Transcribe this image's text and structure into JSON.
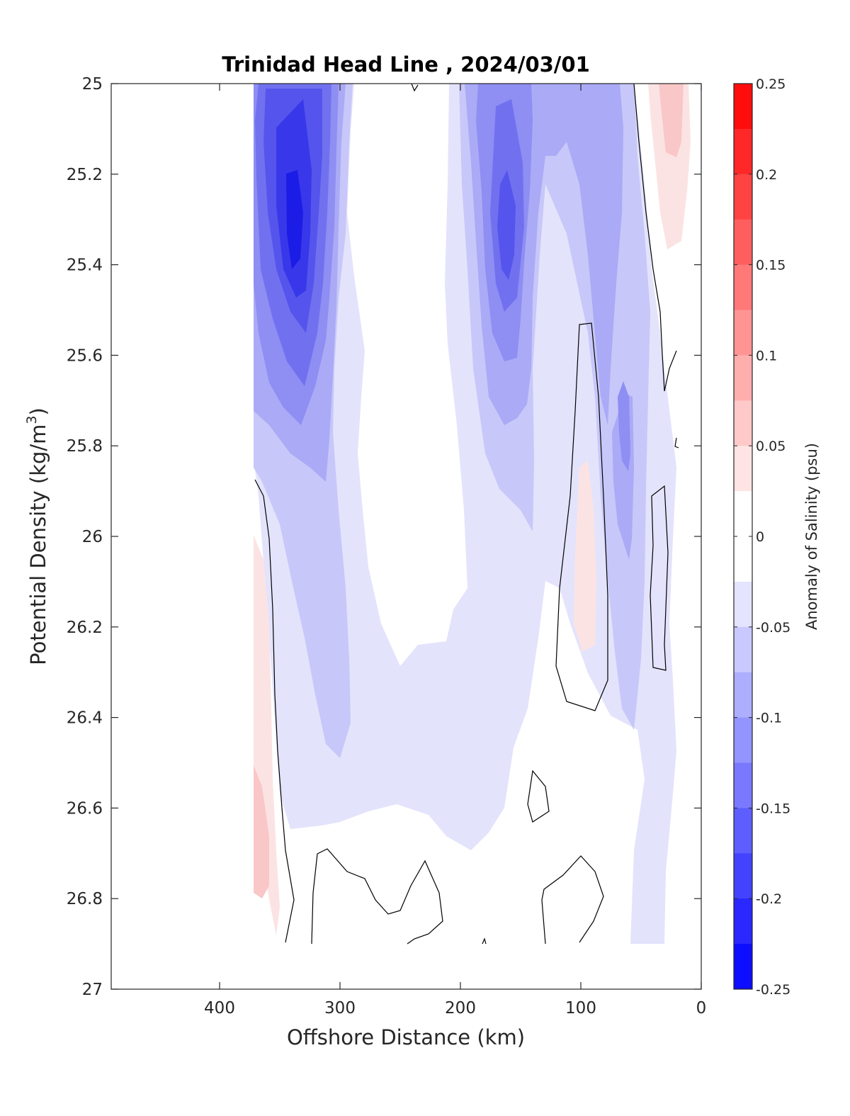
{
  "chart_data": {
    "type": "heatmap",
    "subtype": "filled-contour",
    "title": "Trinidad Head Line , 2024/03/01",
    "xlabel": "Offshore Distance (km)",
    "ylabel_main": "Potential Density (kg/m",
    "ylabel_sup": "3",
    "ylabel_tail": ")",
    "xlim": [
      490,
      0
    ],
    "ylim": [
      25,
      27
    ],
    "x_reversed": true,
    "y_reversed": true,
    "xticks": [
      "400",
      "300",
      "200",
      "100",
      "0"
    ],
    "xtick_values": [
      400,
      300,
      200,
      100,
      0
    ],
    "yticks": [
      "25",
      "25.2",
      "25.4",
      "25.6",
      "25.8",
      "26",
      "26.2",
      "26.4",
      "26.6",
      "26.8",
      "27"
    ],
    "ytick_values": [
      25,
      25.2,
      25.4,
      25.6,
      25.8,
      26,
      26.2,
      26.4,
      26.6,
      26.8,
      27
    ],
    "colorbar": {
      "label": "Anomaly of Salinity (psu)",
      "range": [
        -0.25,
        0.25
      ],
      "levels_step": 0.025,
      "tick_labels": [
        "0.25",
        "0.2",
        "0.15",
        "0.1",
        "0.05",
        "0",
        "-0.05",
        "-0.1",
        "-0.15",
        "-0.2",
        "-0.25"
      ],
      "tick_values": [
        0.25,
        0.2,
        0.15,
        0.1,
        0.05,
        0,
        -0.05,
        -0.1,
        -0.15,
        -0.2,
        -0.25
      ],
      "colormap": "blue-white-red",
      "min_color": "#0000ff",
      "max_color": "#ff0000",
      "mid_color": "#ffffff"
    },
    "data_extent": {
      "x": [
        372,
        14
      ],
      "y": [
        25,
        26.9
      ]
    },
    "features": [
      {
        "x": [
          372,
          290
        ],
        "y": [
          25,
          26.9
        ],
        "min": -0.22,
        "note": "strong negative anomaly core near 340 km, density 25.2-25.4"
      },
      {
        "x": [
          190,
          130
        ],
        "y": [
          25,
          26.0
        ],
        "min": -0.14,
        "note": "negative core near 160 km, density 25.3-25.5"
      },
      {
        "x": [
          68,
          55
        ],
        "y": [
          25.7,
          25.85
        ],
        "min": -0.13
      },
      {
        "x": [
          40,
          20
        ],
        "y": [
          25,
          25.35
        ],
        "max": 0.07,
        "note": "positive anomaly near coast"
      },
      {
        "x": [
          372,
          360
        ],
        "y": [
          26.0,
          26.85
        ],
        "max": 0.07
      },
      {
        "x": [
          105,
          88
        ],
        "y": [
          25.85,
          26.25
        ],
        "max": 0.05
      }
    ]
  }
}
